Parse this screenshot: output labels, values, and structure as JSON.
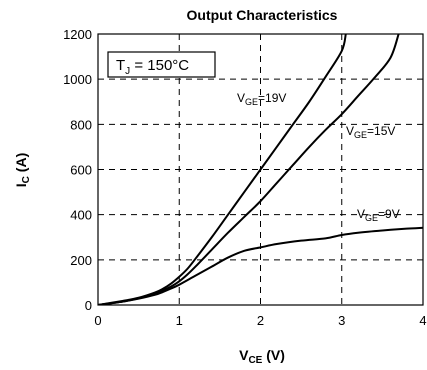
{
  "chart_data": {
    "type": "line",
    "title": "Output Characteristics",
    "xlabel": {
      "main": "V",
      "sub": "CE",
      "unit": " (V)"
    },
    "ylabel": {
      "main": "I",
      "sub": "C",
      "unit": " (A)"
    },
    "xlim": [
      0,
      4
    ],
    "ylim": [
      0,
      1200
    ],
    "xticks": [
      "0",
      "1",
      "2",
      "3",
      "4"
    ],
    "yticks": [
      "0",
      "200",
      "400",
      "600",
      "800",
      "1000",
      "1200"
    ],
    "grid": true,
    "annotation": {
      "prefix": "T",
      "sub": "J",
      "rest": " = 150°C"
    },
    "series": [
      {
        "name": "VGE=19V",
        "label": {
          "main": "V",
          "sub": "GE",
          "rest": "=19V"
        },
        "x": [
          0,
          0.3,
          0.5,
          0.7,
          0.8,
          0.9,
          1.0,
          1.1,
          1.2,
          1.4,
          1.6,
          1.8,
          2.0,
          2.2,
          2.4,
          2.6,
          2.8,
          3.0,
          3.05
        ],
        "y": [
          0,
          18,
          32,
          55,
          72,
          95,
          125,
          160,
          205,
          300,
          400,
          500,
          600,
          700,
          800,
          900,
          1010,
          1125,
          1200
        ]
      },
      {
        "name": "VGE=15V",
        "label": {
          "main": "V",
          "sub": "GE",
          "rest": "=15V"
        },
        "x": [
          0,
          0.3,
          0.5,
          0.7,
          0.8,
          0.9,
          1.0,
          1.1,
          1.2,
          1.4,
          1.6,
          1.8,
          2.0,
          2.2,
          2.4,
          2.6,
          2.8,
          3.0,
          3.2,
          3.4,
          3.6,
          3.7
        ],
        "y": [
          0,
          15,
          30,
          48,
          65,
          82,
          105,
          135,
          170,
          245,
          320,
          390,
          460,
          540,
          620,
          700,
          775,
          845,
          925,
          1005,
          1095,
          1200
        ]
      },
      {
        "name": "VGE=9V",
        "label": {
          "main": "V",
          "sub": "GE",
          "rest": "=9V"
        },
        "x": [
          0,
          0.3,
          0.5,
          0.7,
          0.8,
          0.9,
          1.0,
          1.2,
          1.4,
          1.6,
          1.8,
          2.0,
          2.2,
          2.5,
          2.8,
          3.0,
          3.2,
          3.5,
          3.8,
          4.0
        ],
        "y": [
          0,
          15,
          28,
          45,
          58,
          73,
          90,
          130,
          170,
          210,
          240,
          255,
          270,
          285,
          295,
          310,
          320,
          330,
          338,
          342
        ]
      }
    ]
  }
}
